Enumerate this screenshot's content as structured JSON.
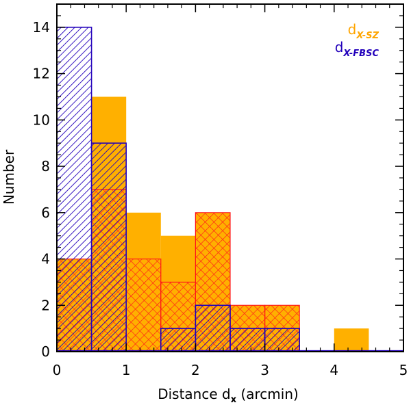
{
  "chart_data": {
    "type": "histogram",
    "xlabel_main": "Distance d",
    "xlabel_sub": "x",
    "xlabel_tail": " (arcmin)",
    "ylabel": "Number",
    "xlim": [
      0,
      5
    ],
    "ylim": [
      0,
      15
    ],
    "x_ticks": [
      0,
      1,
      2,
      3,
      4,
      5
    ],
    "y_ticks": [
      0,
      2,
      4,
      6,
      8,
      10,
      12,
      14
    ],
    "bin_edges": [
      0,
      0.5,
      1.0,
      1.5,
      2.0,
      2.5,
      3.0,
      3.5,
      4.0,
      4.5,
      5.0
    ],
    "series": [
      {
        "name": "d_x-SZ (filled)",
        "style": "solid",
        "color": "#FFB000",
        "values": [
          4,
          11,
          6,
          5,
          6,
          2,
          2,
          0,
          1,
          0
        ]
      },
      {
        "name": "red cross-hatched subset",
        "style": "crosshatch",
        "color": "#FF1A1A",
        "values": [
          4,
          7,
          4,
          3,
          6,
          2,
          2,
          0,
          0,
          0
        ]
      },
      {
        "name": "d_x-FBSC",
        "style": "hatched",
        "color": "#2200BB",
        "values": [
          14,
          9,
          0,
          1,
          2,
          1,
          1,
          0,
          0,
          0
        ]
      }
    ],
    "legend": [
      {
        "main": "d",
        "sub": "X-SZ",
        "color": "#FFA500"
      },
      {
        "main": "d",
        "sub": "X-FBSC",
        "color": "#2200BB"
      }
    ],
    "legend_position": "top-right"
  }
}
